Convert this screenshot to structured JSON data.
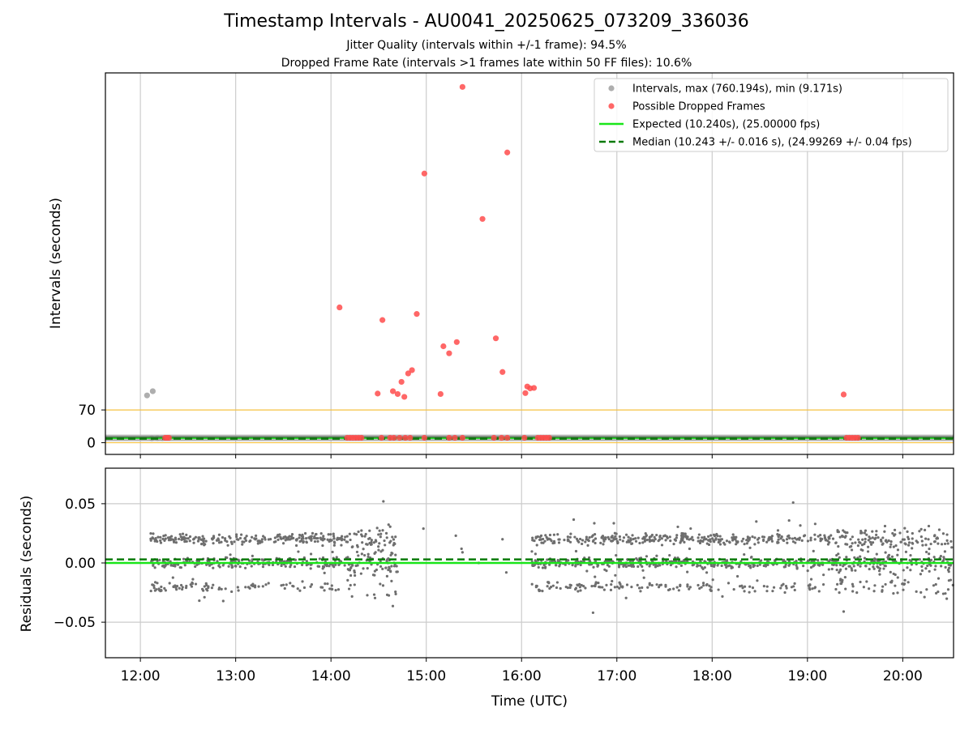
{
  "title": "Timestamp Intervals - AU0041_20250625_073209_336036",
  "subtitle_1": "Jitter Quality (intervals within +/-1 frame): 94.5%",
  "subtitle_2": "Dropped Frame Rate (intervals >1 frames late within 50 FF files): 10.6%",
  "chart_data": [
    {
      "type": "scatter",
      "panel": "top",
      "ylabel": "Intervals (seconds)",
      "xlabel": "",
      "x_unit": "hours UTC",
      "xlim": [
        11.633,
        20.533
      ],
      "ylim": [
        -25,
        790
      ],
      "yticks": [
        0,
        70
      ],
      "ytick_labels": [
        "0",
        "70"
      ],
      "hlines": [
        {
          "y": 0,
          "color": "#f6c242",
          "style": "solid"
        },
        {
          "y": 70,
          "color": "#f6c242",
          "style": "solid"
        }
      ],
      "grid_x": true,
      "legend_position": "top-right",
      "legend": [
        {
          "label": "Intervals, max (760.194s), min (9.171s)",
          "kind": "marker",
          "color": "#a0a0a0"
        },
        {
          "label": "Possible Dropped Frames",
          "kind": "marker",
          "color": "#ff4c4c"
        },
        {
          "label": "Expected (10.240s), (25.00000 fps)",
          "kind": "line",
          "color": "#19e619",
          "dash": "solid"
        },
        {
          "label": "Median (10.243 +/- 0.016 s), (24.99269 +/- 0.04 fps)",
          "kind": "line",
          "color": "#0a7a0a",
          "dash": "dashed"
        }
      ],
      "series": [
        {
          "name": "Intervals, max (760.194s), min (9.171s)",
          "color": "#a0a0a0",
          "band": {
            "x_start": 11.633,
            "x_end": 20.533,
            "y": 10.24
          },
          "points": [
            {
              "x": 12.07,
              "y": 101
            },
            {
              "x": 12.13,
              "y": 110
            },
            {
              "x": 12.12,
              "y": 9.2
            },
            {
              "x": 12.18,
              "y": 9.6
            },
            {
              "x": 12.23,
              "y": 9.4
            }
          ]
        },
        {
          "name": "Possible Dropped Frames",
          "color": "#ff4c4c",
          "points": [
            {
              "x": 15.38,
              "y": 760
            },
            {
              "x": 15.85,
              "y": 620
            },
            {
              "x": 14.98,
              "y": 575
            },
            {
              "x": 15.59,
              "y": 478
            },
            {
              "x": 14.09,
              "y": 289
            },
            {
              "x": 14.9,
              "y": 275
            },
            {
              "x": 14.54,
              "y": 262
            },
            {
              "x": 15.73,
              "y": 223
            },
            {
              "x": 15.32,
              "y": 215
            },
            {
              "x": 15.18,
              "y": 206
            },
            {
              "x": 15.24,
              "y": 191
            },
            {
              "x": 14.85,
              "y": 155
            },
            {
              "x": 15.8,
              "y": 151
            },
            {
              "x": 14.81,
              "y": 148
            },
            {
              "x": 14.74,
              "y": 130
            },
            {
              "x": 16.06,
              "y": 120
            },
            {
              "x": 16.13,
              "y": 117
            },
            {
              "x": 16.09,
              "y": 116
            },
            {
              "x": 14.65,
              "y": 110
            },
            {
              "x": 14.49,
              "y": 105
            },
            {
              "x": 14.7,
              "y": 104
            },
            {
              "x": 16.04,
              "y": 106
            },
            {
              "x": 15.15,
              "y": 104
            },
            {
              "x": 14.77,
              "y": 98
            },
            {
              "x": 19.38,
              "y": 103
            },
            {
              "x": 12.26,
              "y": 10.5
            },
            {
              "x": 12.28,
              "y": 10.5
            },
            {
              "x": 12.3,
              "y": 10.5
            },
            {
              "x": 14.17,
              "y": 10.5
            },
            {
              "x": 14.2,
              "y": 10.5
            },
            {
              "x": 14.23,
              "y": 10.5
            },
            {
              "x": 14.26,
              "y": 10.5
            },
            {
              "x": 14.29,
              "y": 10.5
            },
            {
              "x": 14.32,
              "y": 10.5
            },
            {
              "x": 14.53,
              "y": 10.5
            },
            {
              "x": 14.62,
              "y": 10.5
            },
            {
              "x": 14.66,
              "y": 10.5
            },
            {
              "x": 14.72,
              "y": 10.5
            },
            {
              "x": 14.78,
              "y": 10.5
            },
            {
              "x": 14.83,
              "y": 10.5
            },
            {
              "x": 14.98,
              "y": 10.5
            },
            {
              "x": 15.24,
              "y": 10.5
            },
            {
              "x": 15.3,
              "y": 10.5
            },
            {
              "x": 15.38,
              "y": 10.5
            },
            {
              "x": 15.71,
              "y": 10.5
            },
            {
              "x": 15.79,
              "y": 10.5
            },
            {
              "x": 15.85,
              "y": 10.5
            },
            {
              "x": 16.03,
              "y": 10.5
            },
            {
              "x": 16.17,
              "y": 10.5
            },
            {
              "x": 16.2,
              "y": 10.5
            },
            {
              "x": 16.23,
              "y": 10.5
            },
            {
              "x": 16.26,
              "y": 10.5
            },
            {
              "x": 16.29,
              "y": 10.5
            },
            {
              "x": 19.41,
              "y": 10.5
            },
            {
              "x": 19.44,
              "y": 10.5
            },
            {
              "x": 19.47,
              "y": 10.5
            },
            {
              "x": 19.5,
              "y": 10.5
            },
            {
              "x": 19.53,
              "y": 10.5
            }
          ]
        },
        {
          "name": "Expected (10.240s), (25.00000 fps)",
          "kind": "hline",
          "y": 10.24,
          "color": "#19e619"
        },
        {
          "name": "Median (10.243 +/- 0.016 s), (24.99269 +/- 0.04 fps)",
          "kind": "hline",
          "y": 10.243,
          "color": "#0a7a0a",
          "dash": "dashed"
        }
      ]
    },
    {
      "type": "scatter",
      "panel": "bottom",
      "xlabel": "Time (UTC)",
      "ylabel": "Residuals (seconds)",
      "x_unit": "hours UTC",
      "xlim": [
        11.633,
        20.533
      ],
      "ylim": [
        -0.08,
        0.08
      ],
      "yticks": [
        -0.05,
        0.0,
        0.05
      ],
      "ytick_labels": [
        "−0.05",
        "0.00",
        "0.05"
      ],
      "xticks": [
        12,
        13,
        14,
        15,
        16,
        17,
        18,
        19,
        20
      ],
      "xtick_labels": [
        "12:00",
        "13:00",
        "14:00",
        "15:00",
        "16:00",
        "17:00",
        "18:00",
        "19:00",
        "20:00"
      ],
      "grid": true,
      "series": [
        {
          "name": "Residuals",
          "color": "#6e6e6e",
          "description_bands": [
            {
              "x_range": [
                12.1,
                14.15
              ],
              "levels": [
                -0.02,
                0.0,
                0.02
              ],
              "spread": 0.012
            },
            {
              "x_range": [
                14.15,
                14.7
              ],
              "levels": [
                -0.02,
                0.0,
                0.02
              ],
              "spread": 0.03
            },
            {
              "x_range": [
                16.1,
                19.3
              ],
              "levels": [
                -0.02,
                0.0,
                0.02
              ],
              "spread": 0.012
            },
            {
              "x_range": [
                19.3,
                20.533
              ],
              "levels": [
                -0.02,
                0.0,
                0.02
              ],
              "spread": 0.025
            }
          ],
          "points": [
            {
              "x": 14.55,
              "y": 0.052
            },
            {
              "x": 14.97,
              "y": 0.029
            },
            {
              "x": 15.37,
              "y": 0.012
            },
            {
              "x": 15.38,
              "y": 0.009
            },
            {
              "x": 15.55,
              "y": 0.0
            },
            {
              "x": 15.8,
              "y": 0.02
            },
            {
              "x": 15.84,
              "y": -0.008
            },
            {
              "x": 15.31,
              "y": 0.023
            },
            {
              "x": 16.75,
              "y": -0.042
            },
            {
              "x": 18.85,
              "y": 0.051
            },
            {
              "x": 19.38,
              "y": -0.041
            }
          ]
        },
        {
          "name": "Expected",
          "kind": "hline",
          "y": 0.0,
          "color": "#19e619"
        },
        {
          "name": "Median",
          "kind": "hline",
          "y": 0.003,
          "color": "#0a7a0a",
          "dash": "dashed"
        }
      ]
    }
  ]
}
